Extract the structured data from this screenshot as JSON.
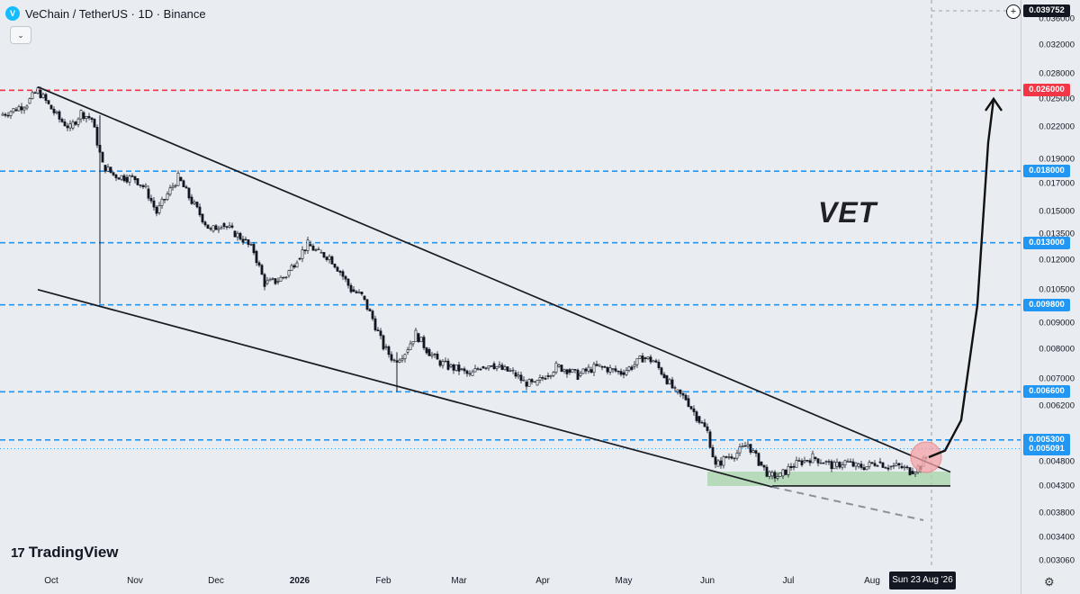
{
  "header": {
    "symbol": "VeChain / TetherUS · 1D · Binance",
    "logo_icon": "vechain-logo-icon",
    "collapse_icon": "chevron-down-icon"
  },
  "annotation": {
    "text": "VET"
  },
  "branding": {
    "logo_mark": "17",
    "name": "TradingView"
  },
  "colors": {
    "background": "#e9ecf1",
    "red_level": "#f23645",
    "blue_level": "#2196f3",
    "candle": "#131722",
    "support_zone": "#a5d6a7",
    "breakout_circle": "#f5a3a8"
  },
  "chart_data": {
    "type": "candlestick",
    "title": "VeChain / TetherUS · 1D · Binance",
    "price_axis": {
      "scale": "log",
      "range": [
        0.00295,
        0.0392
      ],
      "tick_labels": [
        "0.036000",
        "0.032000",
        "0.028000",
        "0.025000",
        "0.022000",
        "0.019000",
        "0.017000",
        "0.015000",
        "0.013500",
        "0.012000",
        "0.010500",
        "0.009000",
        "0.008000",
        "0.007000",
        "0.006200",
        "0.004800",
        "0.004300",
        "0.003800",
        "0.003400",
        "0.003060"
      ],
      "tick_values": [
        0.036,
        0.032,
        0.028,
        0.025,
        0.022,
        0.019,
        0.017,
        0.015,
        0.0135,
        0.012,
        0.0105,
        0.009,
        0.008,
        0.007,
        0.0062,
        0.0048,
        0.0043,
        0.0038,
        0.0034,
        0.00306
      ]
    },
    "time_axis": {
      "labels": [
        {
          "text": "Oct",
          "date": "2025-10-01",
          "bold": false
        },
        {
          "text": "Nov",
          "date": "2025-11-01",
          "bold": false
        },
        {
          "text": "Dec",
          "date": "2025-12-01",
          "bold": false
        },
        {
          "text": "2026",
          "date": "2026-01-01",
          "bold": true
        },
        {
          "text": "Feb",
          "date": "2026-02-01",
          "bold": false
        },
        {
          "text": "Mar",
          "date": "2026-03-01",
          "bold": false
        },
        {
          "text": "Apr",
          "date": "2026-04-01",
          "bold": false
        },
        {
          "text": "May",
          "date": "2026-05-01",
          "bold": false
        },
        {
          "text": "Jun",
          "date": "2026-06-01",
          "bold": false
        },
        {
          "text": "Jul",
          "date": "2026-07-01",
          "bold": false
        },
        {
          "text": "Aug",
          "date": "2026-08-01",
          "bold": false
        }
      ],
      "range": [
        "2025-09-12",
        "2026-09-25"
      ],
      "cursor_label": "Sun 23 Aug '26",
      "cursor_date": "2026-08-23"
    },
    "current_price_label": "0.039752",
    "levels": [
      {
        "label": "0.026000",
        "value": 0.026,
        "color": "red",
        "style": "dashed"
      },
      {
        "label": "0.018000",
        "value": 0.018,
        "color": "blue",
        "style": "dashed"
      },
      {
        "label": "0.013000",
        "value": 0.013,
        "color": "blue",
        "style": "dashed"
      },
      {
        "label": "0.009800",
        "value": 0.0098,
        "color": "blue",
        "style": "dashed"
      },
      {
        "label": "0.006600",
        "value": 0.0066,
        "color": "blue",
        "style": "dashed"
      },
      {
        "label": "0.005300",
        "value": 0.0053,
        "color": "blue",
        "style": "dashed"
      },
      {
        "label": "0.005091",
        "value": 0.005091,
        "color": "blue",
        "style": "dotted"
      }
    ],
    "trendlines": [
      {
        "name": "upper-channel",
        "start": [
          "2025-09-26",
          0.0264
        ],
        "end": [
          "2026-08-30",
          0.00458
        ]
      },
      {
        "name": "lower-channel",
        "start": [
          "2025-09-26",
          0.0105
        ],
        "end": [
          "2026-06-25",
          0.00428
        ]
      },
      {
        "name": "lower-extension",
        "start": [
          "2026-06-25",
          0.00428
        ],
        "end": [
          "2026-08-20",
          0.00368
        ],
        "style": "dashed"
      },
      {
        "name": "support-floor",
        "start": [
          "2026-06-25",
          0.0043
        ],
        "end": [
          "2026-08-30",
          0.0043
        ]
      }
    ],
    "zones": [
      {
        "name": "support-zone",
        "x_start": "2026-06-01",
        "x_end": "2026-08-30",
        "y_low": 0.0043,
        "y_high": 0.00459
      }
    ],
    "breakout_marker": {
      "date": "2026-08-21",
      "price": 0.0049
    },
    "projection": {
      "name": "projected-path",
      "points": [
        [
          "2026-08-22",
          0.0049
        ],
        [
          "2026-08-28",
          0.00505
        ],
        [
          "2026-09-03",
          0.0058
        ],
        [
          "2026-09-09",
          0.0098
        ],
        [
          "2026-09-13",
          0.0205
        ],
        [
          "2026-09-15",
          0.025
        ]
      ]
    },
    "series": [
      {
        "x": "2025-09-12",
        "y": 0.0232
      },
      {
        "x": "2025-09-17",
        "y": 0.0238
      },
      {
        "x": "2025-09-22",
        "y": 0.0245
      },
      {
        "x": "2025-09-26",
        "y": 0.026
      },
      {
        "x": "2025-09-30",
        "y": 0.0243
      },
      {
        "x": "2025-10-04",
        "y": 0.0228
      },
      {
        "x": "2025-10-08",
        "y": 0.0219
      },
      {
        "x": "2025-10-12",
        "y": 0.0235
      },
      {
        "x": "2025-10-16",
        "y": 0.0228
      },
      {
        "x": "2025-10-20",
        "y": 0.0185
      },
      {
        "x": "2025-10-24",
        "y": 0.0177
      },
      {
        "x": "2025-10-28",
        "y": 0.0175
      },
      {
        "x": "2025-11-01",
        "y": 0.0174
      },
      {
        "x": "2025-11-05",
        "y": 0.0166
      },
      {
        "x": "2025-11-09",
        "y": 0.0149
      },
      {
        "x": "2025-11-13",
        "y": 0.0162
      },
      {
        "x": "2025-11-17",
        "y": 0.0175
      },
      {
        "x": "2025-11-21",
        "y": 0.016
      },
      {
        "x": "2025-11-25",
        "y": 0.0148
      },
      {
        "x": "2025-11-29",
        "y": 0.0137
      },
      {
        "x": "2025-12-03",
        "y": 0.0142
      },
      {
        "x": "2025-12-07",
        "y": 0.0137
      },
      {
        "x": "2025-12-11",
        "y": 0.0132
      },
      {
        "x": "2025-12-15",
        "y": 0.0125
      },
      {
        "x": "2025-12-19",
        "y": 0.0108
      },
      {
        "x": "2025-12-23",
        "y": 0.0109
      },
      {
        "x": "2025-12-27",
        "y": 0.0112
      },
      {
        "x": "2025-12-31",
        "y": 0.0121
      },
      {
        "x": "2026-01-04",
        "y": 0.0129
      },
      {
        "x": "2026-01-08",
        "y": 0.0124
      },
      {
        "x": "2026-01-12",
        "y": 0.0122
      },
      {
        "x": "2026-01-16",
        "y": 0.0114
      },
      {
        "x": "2026-01-20",
        "y": 0.0105
      },
      {
        "x": "2026-01-24",
        "y": 0.0102
      },
      {
        "x": "2026-01-28",
        "y": 0.0092
      },
      {
        "x": "2026-02-01",
        "y": 0.0081
      },
      {
        "x": "2026-02-05",
        "y": 0.0076
      },
      {
        "x": "2026-02-09",
        "y": 0.0079
      },
      {
        "x": "2026-02-13",
        "y": 0.0086
      },
      {
        "x": "2026-02-17",
        "y": 0.008
      },
      {
        "x": "2026-02-21",
        "y": 0.0076
      },
      {
        "x": "2026-02-25",
        "y": 0.0074
      },
      {
        "x": "2026-03-01",
        "y": 0.0073
      },
      {
        "x": "2026-03-05",
        "y": 0.0071
      },
      {
        "x": "2026-03-09",
        "y": 0.0074
      },
      {
        "x": "2026-03-13",
        "y": 0.0075
      },
      {
        "x": "2026-03-17",
        "y": 0.0073
      },
      {
        "x": "2026-03-21",
        "y": 0.0072
      },
      {
        "x": "2026-03-25",
        "y": 0.0069
      },
      {
        "x": "2026-03-29",
        "y": 0.0068
      },
      {
        "x": "2026-04-02",
        "y": 0.0071
      },
      {
        "x": "2026-04-06",
        "y": 0.0074
      },
      {
        "x": "2026-04-10",
        "y": 0.0073
      },
      {
        "x": "2026-04-14",
        "y": 0.0071
      },
      {
        "x": "2026-04-18",
        "y": 0.0073
      },
      {
        "x": "2026-04-22",
        "y": 0.0074
      },
      {
        "x": "2026-04-26",
        "y": 0.0073
      },
      {
        "x": "2026-04-30",
        "y": 0.0072
      },
      {
        "x": "2026-05-04",
        "y": 0.0074
      },
      {
        "x": "2026-05-08",
        "y": 0.0077
      },
      {
        "x": "2026-05-12",
        "y": 0.0076
      },
      {
        "x": "2026-05-16",
        "y": 0.0071
      },
      {
        "x": "2026-05-20",
        "y": 0.0066
      },
      {
        "x": "2026-05-24",
        "y": 0.0064
      },
      {
        "x": "2026-05-28",
        "y": 0.0059
      },
      {
        "x": "2026-06-01",
        "y": 0.0055
      },
      {
        "x": "2026-06-04",
        "y": 0.0047
      },
      {
        "x": "2026-06-08",
        "y": 0.0049
      },
      {
        "x": "2026-06-12",
        "y": 0.005
      },
      {
        "x": "2026-06-16",
        "y": 0.0052
      },
      {
        "x": "2026-06-20",
        "y": 0.0048
      },
      {
        "x": "2026-06-24",
        "y": 0.0045
      },
      {
        "x": "2026-06-28",
        "y": 0.0045
      },
      {
        "x": "2026-07-02",
        "y": 0.0047
      },
      {
        "x": "2026-07-06",
        "y": 0.0048
      },
      {
        "x": "2026-07-10",
        "y": 0.0049
      },
      {
        "x": "2026-07-14",
        "y": 0.0048
      },
      {
        "x": "2026-07-18",
        "y": 0.0047
      },
      {
        "x": "2026-07-22",
        "y": 0.0048
      },
      {
        "x": "2026-07-26",
        "y": 0.0047
      },
      {
        "x": "2026-07-30",
        "y": 0.0047
      },
      {
        "x": "2026-08-03",
        "y": 0.0048
      },
      {
        "x": "2026-08-07",
        "y": 0.0047
      },
      {
        "x": "2026-08-11",
        "y": 0.0047
      },
      {
        "x": "2026-08-15",
        "y": 0.0046
      },
      {
        "x": "2026-08-19",
        "y": 0.0047
      },
      {
        "x": "2026-08-21",
        "y": 0.0049
      }
    ]
  }
}
